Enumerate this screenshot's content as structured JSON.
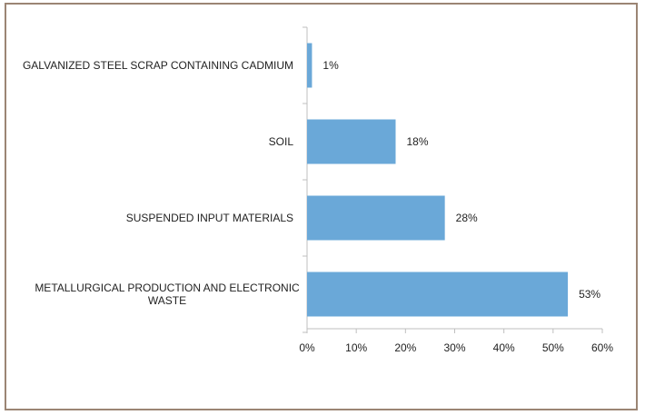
{
  "chart_data": {
    "type": "bar",
    "orientation": "horizontal",
    "categories": [
      [
        "GALVANIZED STEEL SCRAP CONTAINING CADMIUM"
      ],
      [
        "SOIL"
      ],
      [
        "SUSPENDED INPUT MATERIALS"
      ],
      [
        "METALLURGICAL PRODUCTION AND ELECTRONIC",
        "WASTE"
      ]
    ],
    "values": [
      1,
      18,
      28,
      53
    ],
    "data_labels": [
      "1%",
      "18%",
      "28%",
      "53%"
    ],
    "xlim": [
      0,
      60
    ],
    "xticks": [
      0,
      10,
      20,
      30,
      40,
      50,
      60
    ],
    "xtick_labels": [
      "0%",
      "10%",
      "20%",
      "30%",
      "40%",
      "50%",
      "60%"
    ],
    "title": "",
    "xlabel": "",
    "ylabel": "",
    "grid": false,
    "bar_color": "#6aa8d8",
    "axis_color": "#bfbfbf",
    "frame_color": "#9b8574"
  }
}
